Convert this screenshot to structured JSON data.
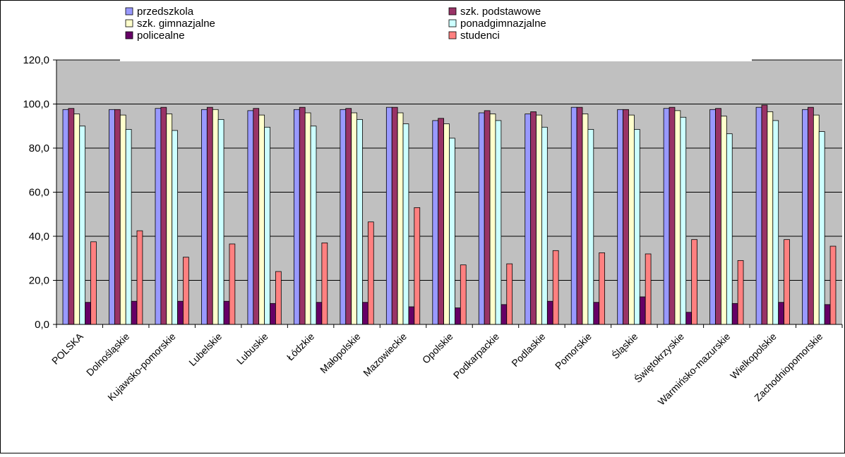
{
  "chart_data": {
    "type": "bar",
    "title": "",
    "xlabel": "",
    "ylabel": "",
    "ylim": [
      0,
      120
    ],
    "yticks": [
      "0,0",
      "20,0",
      "40,0",
      "60,0",
      "80,0",
      "100,0",
      "120,0"
    ],
    "grid": true,
    "legend_position": "top",
    "categories": [
      "POLSKA",
      "Dolnośląskie",
      "Kujawsko-pomorskie",
      "Lubelskie",
      "Lubuskie",
      "Łódzkie",
      "Małopolskie",
      "Mazowieckie",
      "Opolskie",
      "Podkarpackie",
      "Podlaskie",
      "Pomorskie",
      "Śląskie",
      "Świętokrzyskie",
      "Warmińsko-mazurskie",
      "Wielkopolskie",
      "Zachodniopomorskie"
    ],
    "series": [
      {
        "name": "przedszkola",
        "color": "#9999ff",
        "values": [
          97.5,
          97.5,
          98.0,
          97.5,
          97.0,
          97.5,
          97.5,
          98.5,
          92.5,
          96.0,
          95.5,
          98.5,
          97.5,
          98.0,
          97.5,
          98.5,
          97.5
        ]
      },
      {
        "name": "szk. podstawowe",
        "color": "#993366",
        "values": [
          98.0,
          97.5,
          98.5,
          98.5,
          98.0,
          98.5,
          98.0,
          98.5,
          93.5,
          97.0,
          96.5,
          98.5,
          97.5,
          98.5,
          98.0,
          99.5,
          98.5
        ]
      },
      {
        "name": "szk. gimnazjalne",
        "color": "#ffffcc",
        "values": [
          95.5,
          95.0,
          95.5,
          97.5,
          95.0,
          96.0,
          96.0,
          96.0,
          91.0,
          95.5,
          95.0,
          95.5,
          95.0,
          97.0,
          94.5,
          96.5,
          95.0
        ]
      },
      {
        "name": "ponadgimnazjalne",
        "color": "#ccffff",
        "values": [
          90.0,
          88.5,
          88.0,
          93.0,
          89.5,
          90.0,
          93.0,
          91.0,
          84.5,
          92.5,
          89.5,
          88.5,
          88.5,
          94.0,
          86.5,
          92.5,
          87.5
        ]
      },
      {
        "name": "policealne",
        "color": "#660066",
        "values": [
          10.0,
          10.5,
          10.5,
          10.5,
          9.5,
          10.0,
          10.0,
          8.0,
          7.5,
          9.0,
          10.5,
          10.0,
          12.5,
          5.5,
          9.5,
          10.0,
          9.0
        ]
      },
      {
        "name": "studenci",
        "color": "#ff8080",
        "values": [
          37.5,
          42.5,
          30.5,
          36.5,
          24.0,
          37.0,
          46.5,
          53.0,
          27.0,
          27.5,
          33.5,
          32.5,
          32.0,
          38.5,
          29.0,
          38.5,
          35.5
        ]
      }
    ]
  }
}
